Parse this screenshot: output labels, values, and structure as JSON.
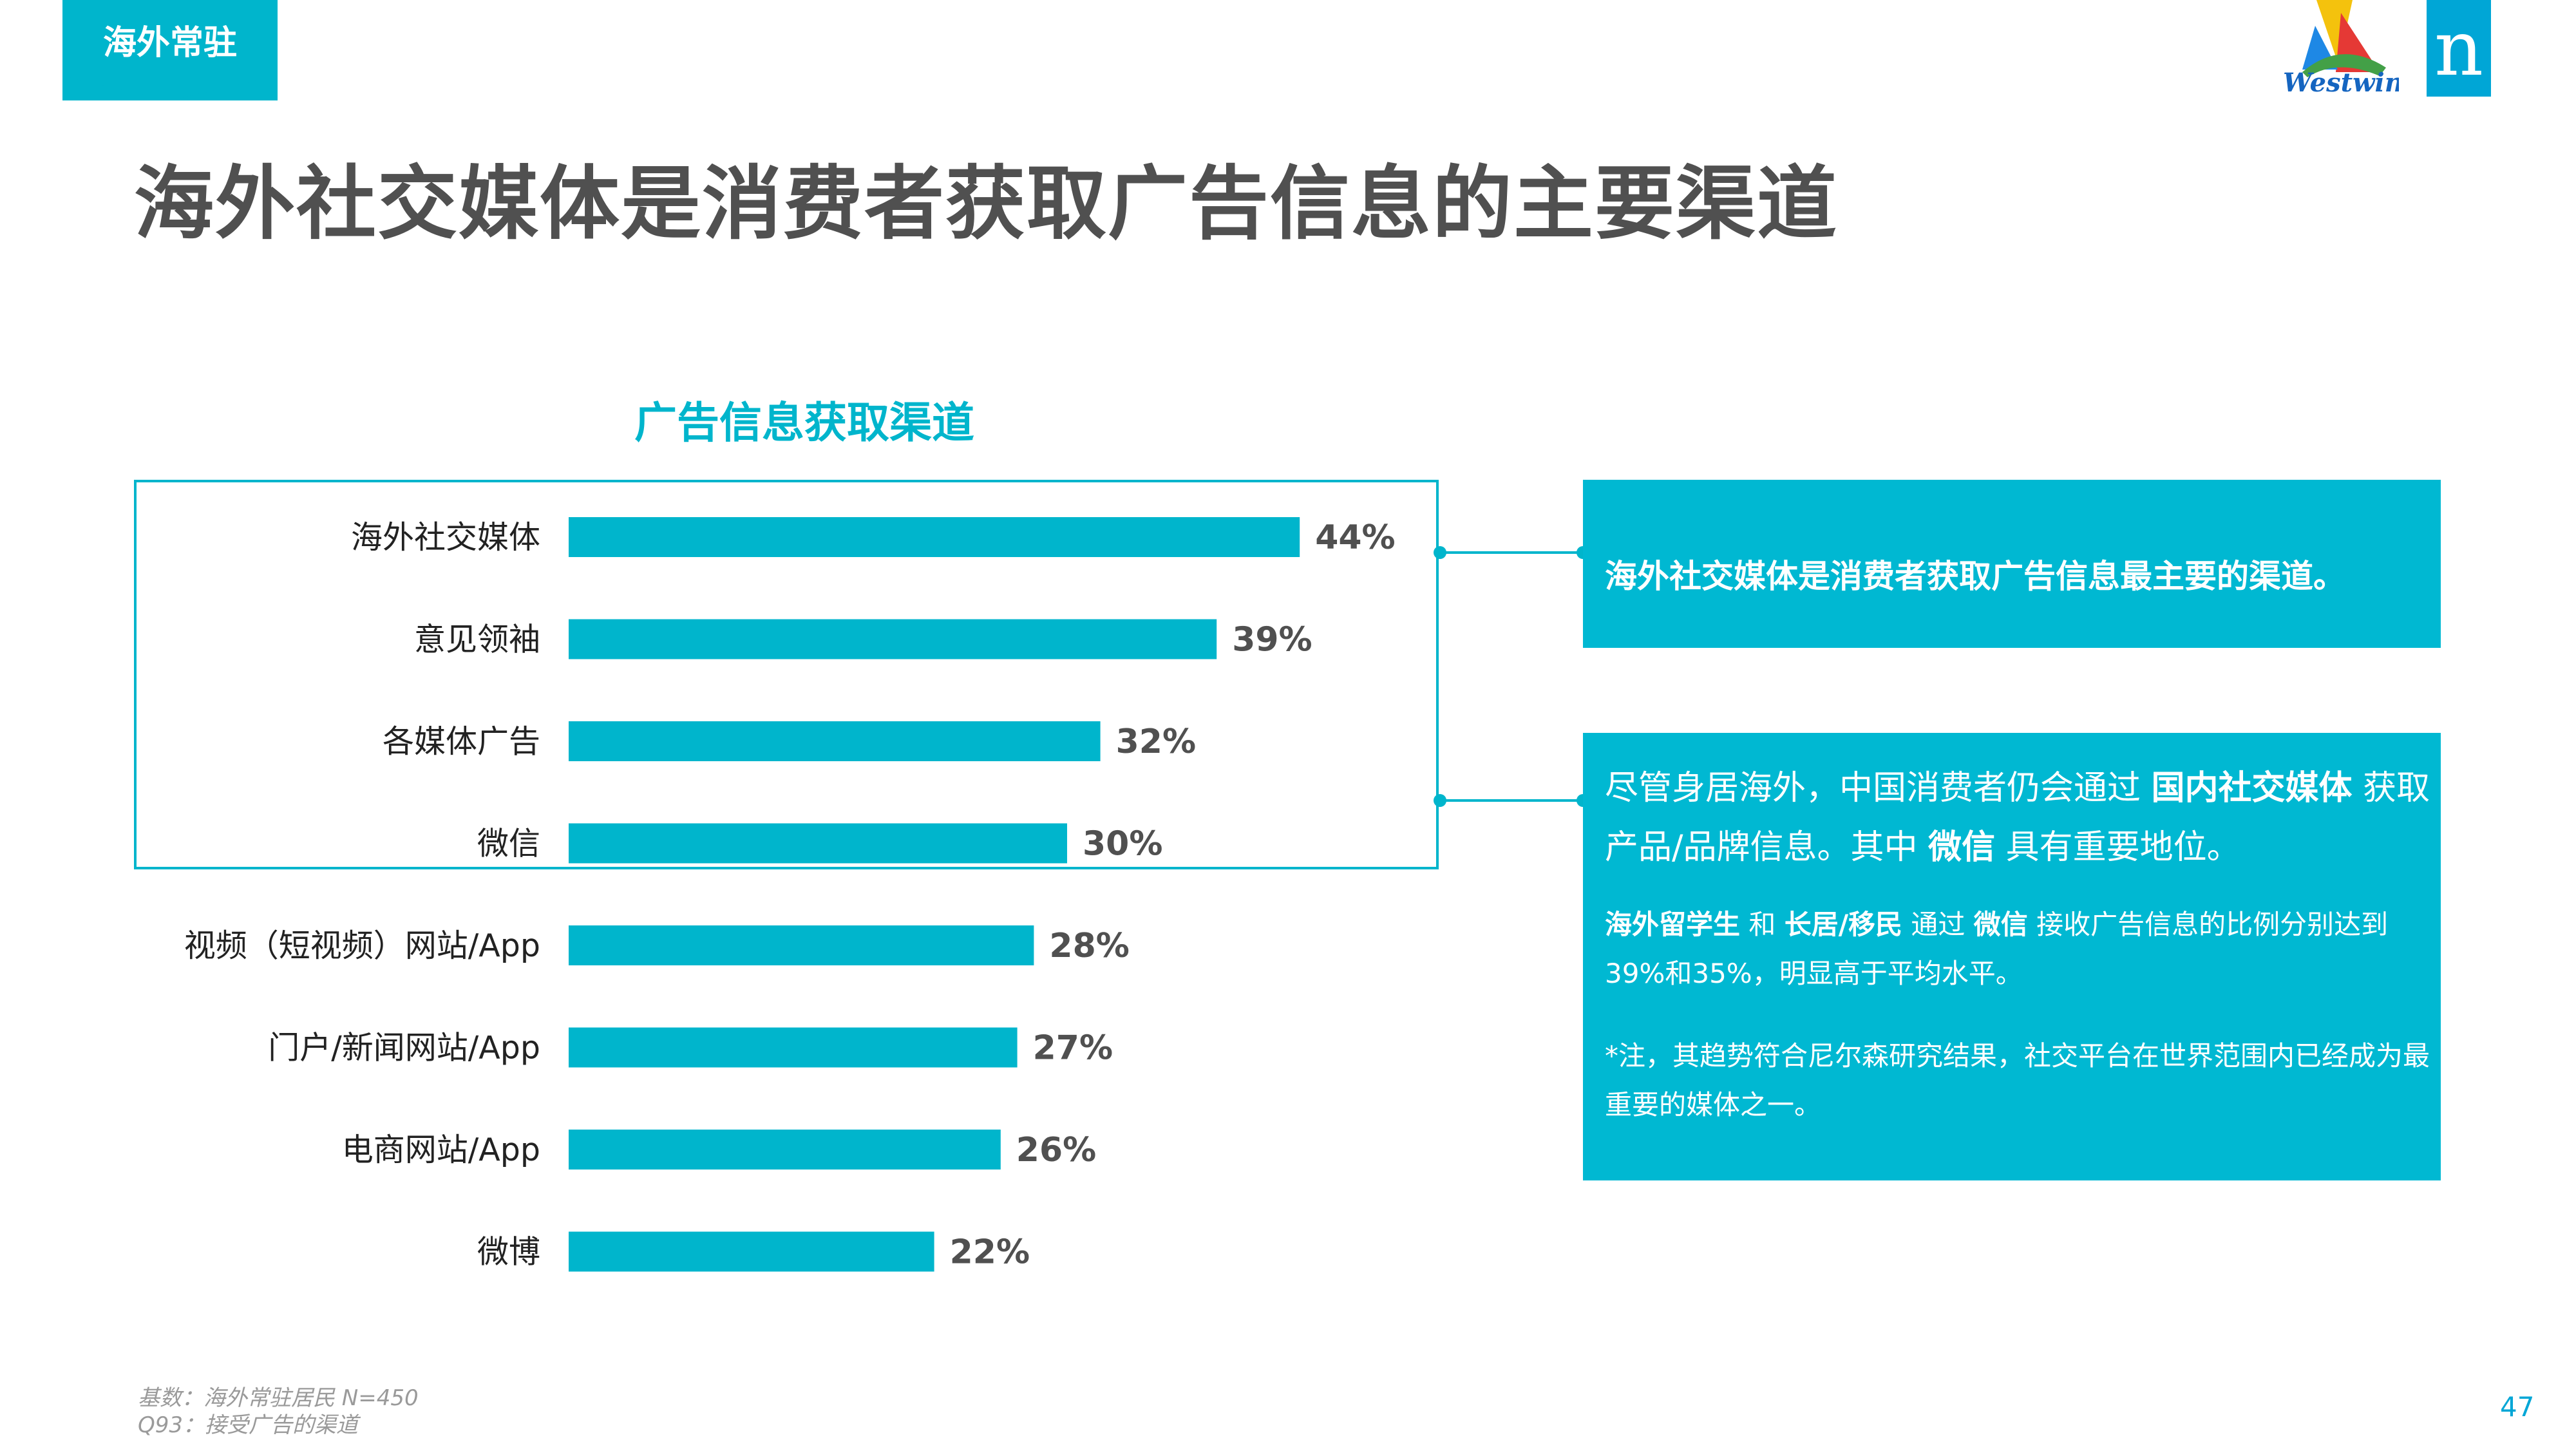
{
  "tag": "海外常驻",
  "logo": {
    "westwin_text": "Westwin",
    "n_text": "n",
    "brand_color": "#00a6d6"
  },
  "title": "海外社交媒体是消费者获取广告信息的主要渠道",
  "chart_data": {
    "type": "bar",
    "orientation": "horizontal",
    "title": "广告信息获取渠道",
    "categories": [
      "海外社交媒体",
      "意见领袖",
      "各媒体广告",
      "微信",
      "视频（短视频）网站/App",
      "门户/新闻网站/App",
      "电商网站/App",
      "微博"
    ],
    "values": [
      44,
      39,
      32,
      30,
      28,
      27,
      26,
      22
    ],
    "value_labels": [
      "44%",
      "39%",
      "32%",
      "30%",
      "28%",
      "27%",
      "26%",
      "22%"
    ],
    "unit": "%",
    "xlim": [
      0,
      50
    ],
    "grid": false,
    "bar_color": "#00b5cc",
    "highlighted_categories": [
      "海外社交媒体",
      "意见领袖",
      "各媒体广告",
      "微信"
    ]
  },
  "panel1": {
    "text": "海外社交媒体是消费者获取广告信息最主要的渠道。"
  },
  "panel2": {
    "line1_a": "尽管身居海外，中国消费者仍会通过 ",
    "line1_b": "国内社交媒体",
    "line1_c": " 获取",
    "line2_a": "产品/品牌信息。其中 ",
    "line2_b": "微信",
    "line2_c": " 具有重要地位。",
    "line3_a": "海外留学生",
    "line3_b": " 和 ",
    "line3_c": "长居/移民",
    "line3_d": " 通过 ",
    "line3_e": "微信",
    "line3_f": " 接收广告信息的比例分别达到",
    "line4": "39%和35%，明显高于平均水平。",
    "line5": "*注，其趋势符合尼尔森研究结果，社交平台在世界范围内已经成为最",
    "line6": "重要的媒体之一。"
  },
  "footnote": {
    "line1": "基数：海外常驻居民 N=450",
    "line2": "Q93：接受广告的渠道"
  },
  "page_number": "47"
}
